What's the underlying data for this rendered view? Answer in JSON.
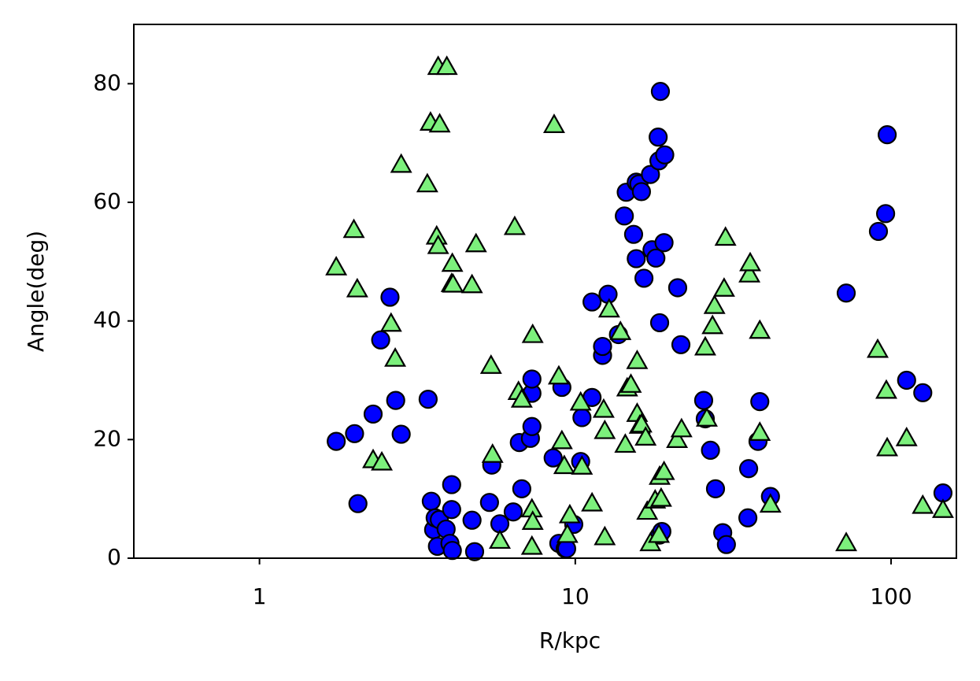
{
  "chart_data": {
    "type": "scatter",
    "x_label": "R/kpc",
    "y_label": "Angle(deg)",
    "xscale": "log",
    "xlim": [
      0.4,
      161
    ],
    "xticks": [
      1,
      10,
      100
    ],
    "ylim": [
      0,
      90
    ],
    "yticks": [
      0,
      20,
      40,
      60,
      80
    ],
    "grid": false,
    "series": [
      {
        "color": "#0000ff",
        "marker": "circle",
        "x": [
          1.75,
          2.0,
          2.05,
          2.29,
          2.42,
          2.59,
          2.7,
          2.81,
          3.42,
          3.5,
          3.56,
          3.6,
          3.66,
          3.71,
          3.9,
          4.01,
          4.06,
          4.06,
          4.08,
          4.8,
          4.71,
          5.35,
          5.44,
          5.77,
          6.36,
          6.65,
          6.77,
          7.21,
          7.29,
          7.29,
          7.29,
          8.51,
          8.87,
          9.07,
          9.29,
          9.39,
          9.89,
          10.4,
          10.5,
          11.3,
          11.3,
          12.2,
          12.2,
          12.7,
          13.7,
          14.3,
          14.5,
          15.3,
          15.6,
          15.6,
          15.9,
          16.2,
          16.5,
          17.3,
          17.5,
          18.0,
          18.4,
          18.5,
          18.5,
          18.8,
          18.3,
          18.6,
          19.2,
          19.1,
          21.1,
          21.6,
          25.5,
          25.8,
          26.8,
          27.8,
          29.3,
          30.1,
          35.4,
          35.2,
          37.9,
          38.4,
          41.5,
          72.1,
          91.2,
          96.1,
          97.2,
          112,
          126,
          146
        ],
        "values": [
          19.7,
          21.0,
          9.2,
          24.3,
          36.8,
          44.0,
          26.6,
          20.9,
          26.8,
          9.6,
          4.8,
          6.8,
          2.0,
          6.5,
          4.9,
          2.5,
          12.4,
          8.2,
          1.3,
          1.1,
          6.4,
          9.4,
          15.7,
          5.8,
          7.8,
          19.5,
          11.7,
          20.2,
          27.8,
          30.2,
          22.2,
          16.9,
          2.5,
          28.8,
          1.6,
          1.6,
          5.7,
          16.3,
          23.7,
          43.2,
          27.1,
          34.2,
          35.7,
          44.5,
          37.7,
          57.7,
          61.7,
          54.6,
          63.4,
          50.5,
          63.1,
          61.8,
          47.2,
          64.7,
          52.0,
          50.6,
          67.0,
          39.7,
          3.9,
          4.5,
          71.0,
          78.7,
          68.0,
          53.2,
          45.6,
          36.0,
          26.6,
          23.5,
          18.2,
          11.7,
          4.3,
          2.3,
          15.1,
          6.8,
          19.7,
          26.4,
          10.4,
          44.7,
          55.1,
          58.1,
          71.4,
          30.0,
          27.9,
          11.0
        ]
      },
      {
        "color": "#7cf07c",
        "marker": "triangle",
        "x": [
          1.75,
          1.99,
          2.04,
          2.29,
          2.44,
          2.61,
          2.69,
          2.81,
          3.4,
          3.48,
          3.64,
          3.68,
          3.68,
          3.72,
          3.92,
          4.08,
          4.06,
          4.1,
          4.71,
          4.85,
          5.41,
          5.47,
          5.77,
          6.43,
          6.61,
          6.77,
          7.33,
          7.29,
          7.33,
          7.29,
          8.57,
          8.87,
          9.07,
          9.23,
          9.44,
          9.61,
          10.4,
          10.5,
          11.3,
          12.3,
          12.4,
          12.4,
          12.8,
          13.9,
          14.4,
          14.6,
          15.0,
          15.7,
          15.7,
          16.0,
          16.2,
          16.7,
          16.9,
          17.3,
          17.9,
          18.4,
          18.5,
          18.7,
          19.1,
          21.0,
          21.7,
          25.8,
          26.1,
          27.2,
          27.6,
          29.6,
          29.9,
          35.6,
          35.8,
          38.4,
          38.4,
          41.5,
          72.1,
          90.7,
          96.6,
          97.2,
          112,
          126,
          146
        ],
        "values": [
          49.0,
          55.3,
          45.3,
          16.5,
          16.1,
          39.5,
          33.6,
          66.3,
          63.0,
          73.4,
          54.2,
          52.6,
          82.8,
          73.1,
          82.8,
          49.6,
          46.2,
          46.1,
          46.0,
          52.9,
          32.4,
          17.4,
          2.9,
          55.8,
          28.0,
          26.7,
          37.6,
          8.2,
          6.1,
          1.9,
          73.0,
          30.6,
          19.7,
          15.5,
          3.9,
          7.2,
          26.2,
          15.4,
          9.2,
          25.0,
          21.4,
          3.5,
          41.9,
          38.1,
          19.1,
          28.6,
          29.2,
          33.2,
          24.3,
          22.3,
          22.5,
          20.3,
          7.8,
          2.5,
          9.7,
          3.9,
          13.7,
          10.0,
          14.5,
          19.9,
          21.7,
          35.5,
          23.5,
          39.1,
          42.5,
          45.4,
          54.0,
          47.8,
          49.7,
          38.3,
          21.1,
          9.0,
          2.5,
          35.1,
          28.2,
          18.5,
          20.2,
          8.8,
          8.1
        ]
      }
    ]
  }
}
